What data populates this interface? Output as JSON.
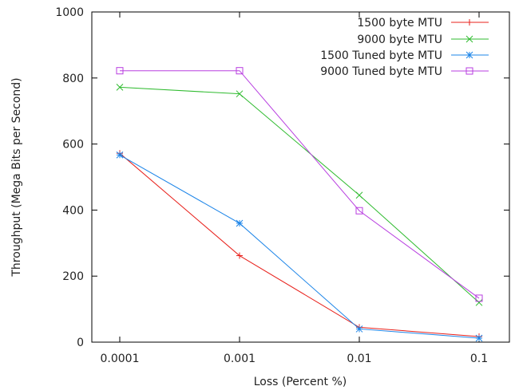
{
  "chart_data": {
    "type": "line",
    "x_scale": "log",
    "x": [
      0.0001,
      0.001,
      0.01,
      0.1
    ],
    "x_tick_labels": [
      "0.0001",
      "0.001",
      "0.01",
      "0.1"
    ],
    "y_ticks": [
      0,
      200,
      400,
      600,
      800,
      1000
    ],
    "y_tick_labels": [
      "0",
      "200",
      "400",
      "600",
      "800",
      "1000"
    ],
    "ylim": [
      0,
      1000
    ],
    "xlabel": "Loss (Percent %)",
    "ylabel": "Throughput (Mega Bits per Second)",
    "grid": false,
    "legend_position": "top-right",
    "series": [
      {
        "name": "1500 byte MTU",
        "color": "#e8201b",
        "marker": "plus",
        "values": [
          572,
          262,
          45,
          17
        ]
      },
      {
        "name": "9000 byte MTU",
        "color": "#2fbb2f",
        "marker": "cross",
        "values": [
          772,
          752,
          445,
          120
        ]
      },
      {
        "name": "1500 Tuned byte MTU",
        "color": "#1b84e8",
        "marker": "star",
        "values": [
          567,
          360,
          40,
          12
        ]
      },
      {
        "name": "9000 Tuned byte MTU",
        "color": "#b83ee0",
        "marker": "square",
        "values": [
          822,
          822,
          398,
          133
        ]
      }
    ]
  }
}
